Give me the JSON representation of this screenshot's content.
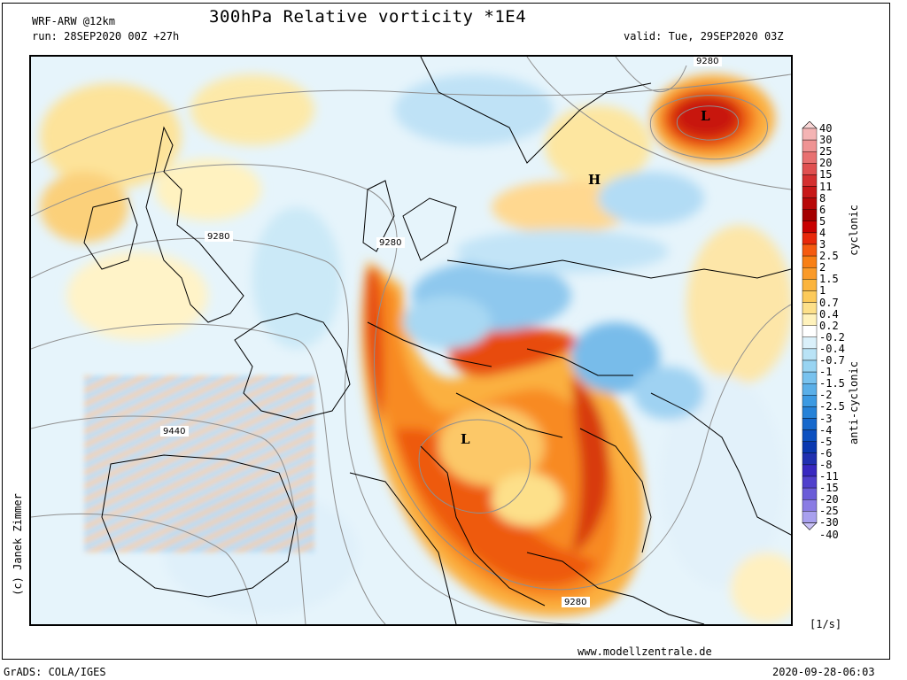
{
  "header": {
    "model": "WRF-ARW @12km",
    "title": "300hPa Relative vorticity *1E4",
    "run": "run: 28SEP2020 00Z +27h",
    "valid": "valid: Tue, 29SEP2020 03Z"
  },
  "map": {
    "contour_labels": [
      "9280",
      "9280",
      "9280",
      "9440",
      "9280"
    ],
    "pressure_centers": [
      "L",
      "H",
      "L"
    ]
  },
  "legend": {
    "levels": [
      "40",
      "30",
      "25",
      "20",
      "15",
      "11",
      "8",
      "6",
      "5",
      "4",
      "3",
      "2.5",
      "2",
      "1.5",
      "1",
      "0.7",
      "0.4",
      "0.2",
      "-0.2",
      "-0.4",
      "-0.7",
      "-1",
      "-1.5",
      "-2",
      "-2.5",
      "-3",
      "-4",
      "-5",
      "-6",
      "-8",
      "-11",
      "-15",
      "-20",
      "-25",
      "-30",
      "-40"
    ],
    "colors": [
      "#f9d6d6",
      "#f4b4b4",
      "#ef9393",
      "#e87070",
      "#e05050",
      "#d43030",
      "#c81818",
      "#b80808",
      "#a50000",
      "#c80000",
      "#e8280a",
      "#f55a0f",
      "#f87f14",
      "#fa9a28",
      "#fbb43c",
      "#fcca5a",
      "#fde08a",
      "#fff2bc",
      "#ffffff",
      "#daf0fa",
      "#b9e3f6",
      "#98d4f2",
      "#78c2ee",
      "#5aafe8",
      "#3c9ae2",
      "#2682d8",
      "#1668cc",
      "#0c50c0",
      "#0a38b0",
      "#2030b0",
      "#3828c0",
      "#5040cc",
      "#6a5cd8",
      "#8a7ce4",
      "#a8a0ee",
      "#c8c0f6"
    ],
    "cyclonic_label": "cyclonic",
    "anticyclonic_label": "anti-cyclonic",
    "unit": "[1/s]"
  },
  "footer": {
    "credit": "(c) Janek Zimmer",
    "website": "www.modellzentrale.de",
    "software": "GrADS: COLA/IGES",
    "timestamp": "2020-09-28-06:03"
  }
}
